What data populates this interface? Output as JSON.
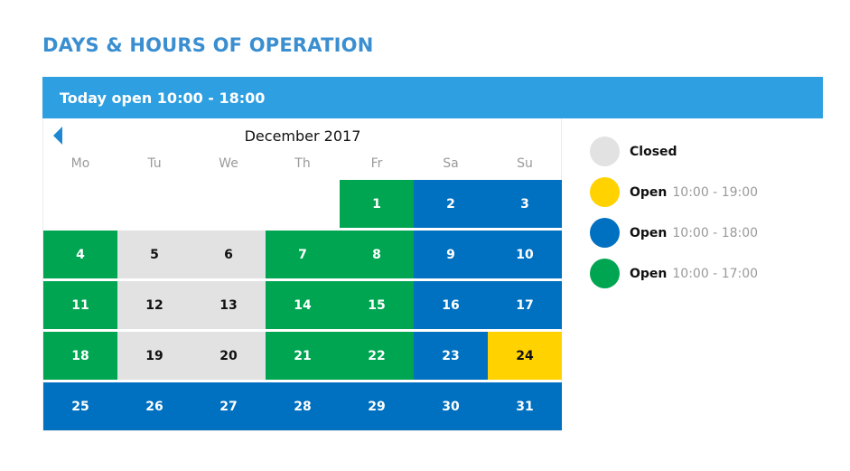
{
  "page": {
    "title": "DAYS & HOURS OF OPERATION",
    "today": "Today open 10:00 - 18:00"
  },
  "colors": {
    "title": "#3b8fd0",
    "bar": "#2e9fe0",
    "closed": "#e2e2e2",
    "yellow": "#ffd200",
    "blue": "#0070c0",
    "green": "#00a551"
  },
  "calendar": {
    "month": "December 2017",
    "prev_icon": "caret-left-icon",
    "weekdays": [
      "Mo",
      "Tu",
      "We",
      "Th",
      "Fr",
      "Sa",
      "Su"
    ],
    "days": [
      {
        "day": "",
        "status": "empty"
      },
      {
        "day": "",
        "status": "empty"
      },
      {
        "day": "",
        "status": "empty"
      },
      {
        "day": "",
        "status": "empty"
      },
      {
        "day": "1",
        "status": "green"
      },
      {
        "day": "2",
        "status": "blue"
      },
      {
        "day": "3",
        "status": "blue"
      },
      {
        "day": "4",
        "status": "green"
      },
      {
        "day": "5",
        "status": "closed"
      },
      {
        "day": "6",
        "status": "closed"
      },
      {
        "day": "7",
        "status": "green"
      },
      {
        "day": "8",
        "status": "green"
      },
      {
        "day": "9",
        "status": "blue"
      },
      {
        "day": "10",
        "status": "blue"
      },
      {
        "day": "11",
        "status": "green"
      },
      {
        "day": "12",
        "status": "closed"
      },
      {
        "day": "13",
        "status": "closed"
      },
      {
        "day": "14",
        "status": "green"
      },
      {
        "day": "15",
        "status": "green"
      },
      {
        "day": "16",
        "status": "blue"
      },
      {
        "day": "17",
        "status": "blue"
      },
      {
        "day": "18",
        "status": "green"
      },
      {
        "day": "19",
        "status": "closed"
      },
      {
        "day": "20",
        "status": "closed"
      },
      {
        "day": "21",
        "status": "green"
      },
      {
        "day": "22",
        "status": "green"
      },
      {
        "day": "23",
        "status": "blue"
      },
      {
        "day": "24",
        "status": "yellow"
      },
      {
        "day": "25",
        "status": "blue"
      },
      {
        "day": "26",
        "status": "blue"
      },
      {
        "day": "27",
        "status": "blue"
      },
      {
        "day": "28",
        "status": "blue"
      },
      {
        "day": "29",
        "status": "blue"
      },
      {
        "day": "30",
        "status": "blue"
      },
      {
        "day": "31",
        "status": "blue"
      }
    ]
  },
  "legend": [
    {
      "status": "closed",
      "label": "Closed",
      "hours": ""
    },
    {
      "status": "yellow",
      "label": "Open",
      "hours": "10:00 - 19:00"
    },
    {
      "status": "blue",
      "label": "Open",
      "hours": "10:00 - 18:00"
    },
    {
      "status": "green",
      "label": "Open",
      "hours": "10:00 - 17:00"
    }
  ]
}
